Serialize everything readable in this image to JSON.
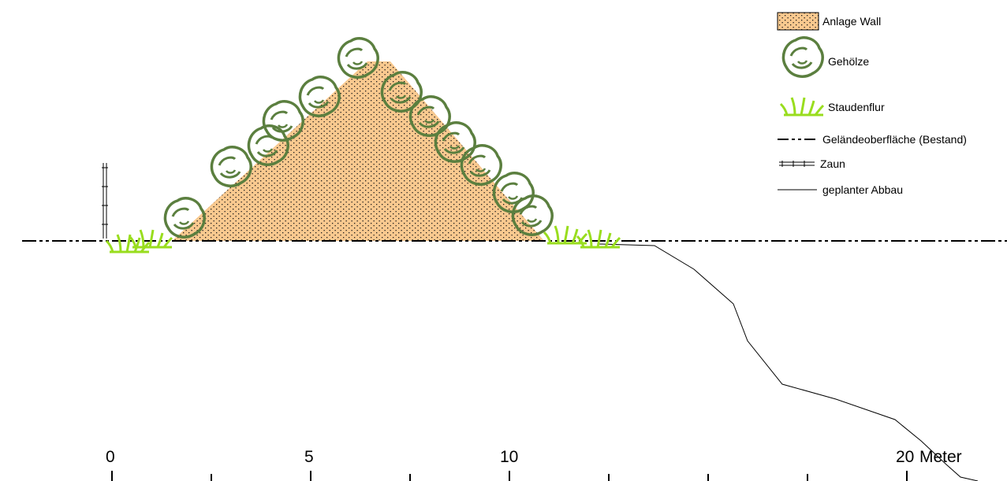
{
  "legend": {
    "wall": "Anlage Wall",
    "shrubs": "Gehölze",
    "perennials": "Staudenflur",
    "ground": "Geländeoberfläche (Bestand)",
    "fence": "Zaun",
    "excavation": "geplanter Abbau"
  },
  "scale": {
    "labels": [
      "0",
      "5",
      "10",
      "20"
    ],
    "unit": "Meter"
  },
  "colors": {
    "wall_fill": "#f9c98f",
    "shrub_stroke": "#5b7f3f",
    "grass_stroke": "#99dd1e",
    "line": "#000000"
  }
}
